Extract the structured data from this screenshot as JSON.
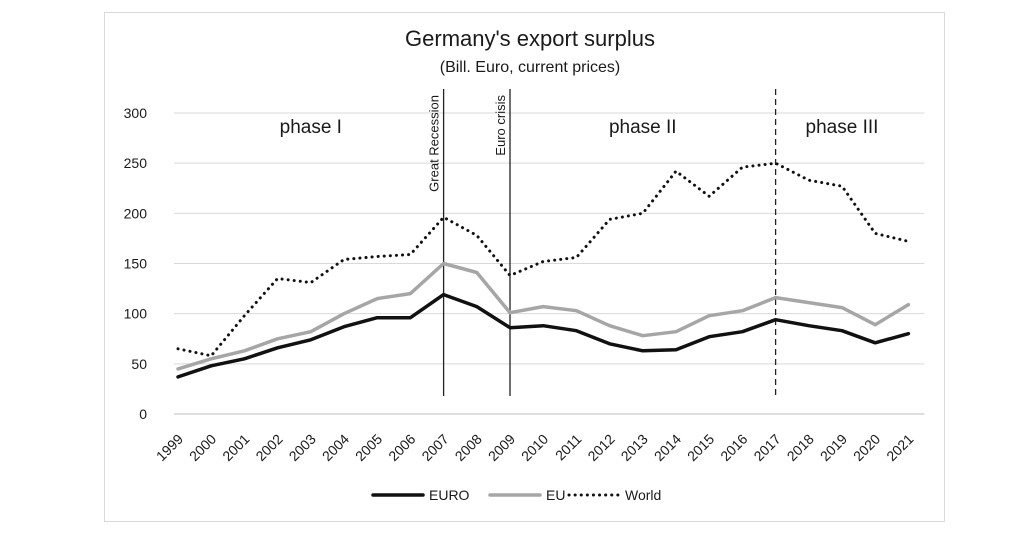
{
  "chart_data": {
    "type": "line",
    "title": "Germany's export surplus",
    "subtitle": "(Bill. Euro, current prices)",
    "x": [
      "1999",
      "2000",
      "2001",
      "2002",
      "2003",
      "2004",
      "2005",
      "2006",
      "2007",
      "2008",
      "2009",
      "2010",
      "2011",
      "2012",
      "2013",
      "2014",
      "2015",
      "2016",
      "2017",
      "2018",
      "2019",
      "2020",
      "2021"
    ],
    "ylim": [
      0,
      300
    ],
    "yticks": [
      0,
      50,
      100,
      150,
      200,
      250,
      300
    ],
    "grid": true,
    "legend_position": "bottom",
    "series": [
      {
        "name": "EURO",
        "color": "#111111",
        "style": "solid",
        "values": [
          37,
          48,
          55,
          66,
          74,
          87,
          96,
          96,
          119,
          107,
          86,
          88,
          83,
          70,
          63,
          64,
          77,
          82,
          94,
          88,
          83,
          71,
          80
        ]
      },
      {
        "name": "EU",
        "color": "#a6a6a6",
        "style": "solid",
        "values": [
          45,
          55,
          63,
          75,
          82,
          100,
          115,
          120,
          150,
          141,
          101,
          107,
          103,
          88,
          78,
          82,
          98,
          103,
          116,
          111,
          106,
          89,
          109
        ]
      },
      {
        "name": "World",
        "color": "#111111",
        "style": "dotted",
        "values": [
          65,
          58,
          98,
          135,
          131,
          154,
          157,
          159,
          196,
          178,
          138,
          152,
          156,
          194,
          200,
          242,
          217,
          246,
          250,
          233,
          227,
          180,
          172
        ]
      }
    ],
    "vlines": [
      {
        "x": "2007",
        "label": "Great Recession",
        "style": "solid"
      },
      {
        "x": "2009",
        "label": "Euro crisis",
        "style": "solid"
      },
      {
        "x": "2017",
        "label": "",
        "style": "dashed"
      }
    ],
    "annotations": [
      {
        "text": "phase I",
        "x_from": "1999",
        "x_to": "2007"
      },
      {
        "text": "phase II",
        "x_from": "2009",
        "x_to": "2017"
      },
      {
        "text": "phase III",
        "x_from": "2017",
        "x_to": "2021"
      }
    ]
  }
}
